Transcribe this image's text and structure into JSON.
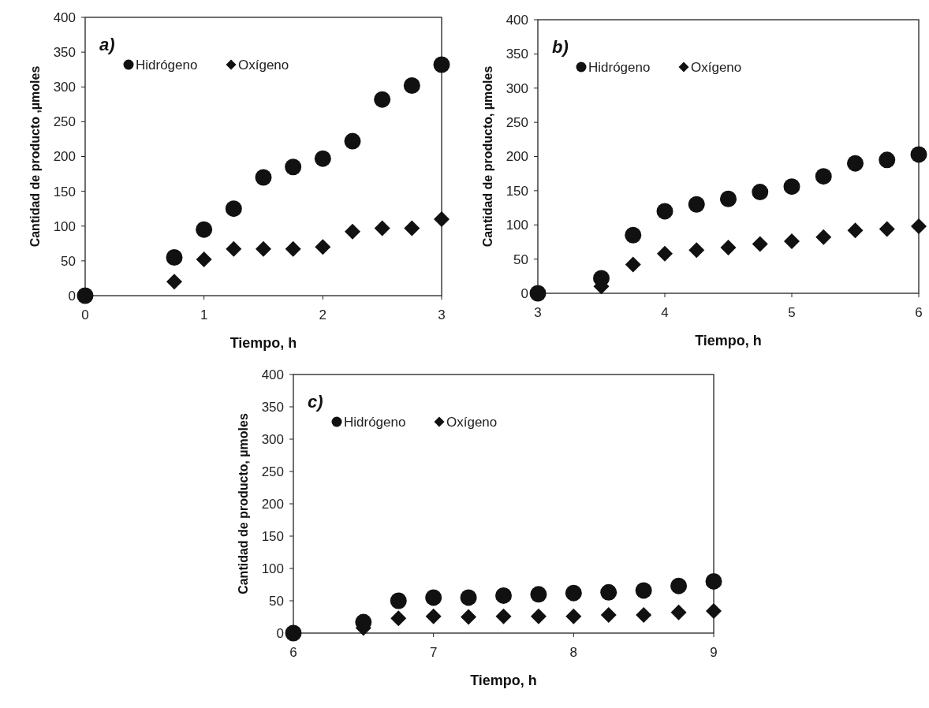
{
  "chart_data": [
    {
      "type": "scatter",
      "title": "a)",
      "xlabel": "Tiempo, h",
      "ylabel": "Cantidad de producto ,µmoles",
      "x": [
        0,
        0.75,
        1,
        1.25,
        1.5,
        1.75,
        2,
        2.25,
        2.5,
        2.75,
        3
      ],
      "xlim": [
        0,
        3
      ],
      "xticks": [
        0,
        1,
        2,
        3
      ],
      "ylim": [
        0,
        400
      ],
      "yticks": [
        0,
        50,
        100,
        150,
        200,
        250,
        300,
        350,
        400
      ],
      "grid": false,
      "legend": "top left",
      "series": [
        {
          "name": "Hidrógeno",
          "color": "#111111",
          "marker": "circle",
          "values": [
            0,
            55,
            95,
            125,
            170,
            185,
            197,
            222,
            282,
            302,
            332
          ]
        },
        {
          "name": "Oxígeno",
          "color": "#111111",
          "marker": "diamond",
          "values": [
            null,
            20,
            52,
            67,
            67,
            67,
            70,
            92,
            97,
            97,
            110
          ]
        }
      ]
    },
    {
      "type": "scatter",
      "title": "b)",
      "xlabel": "Tiempo, h",
      "ylabel": "Cantidad de producto, µmoles",
      "x": [
        3,
        3.5,
        3.75,
        4,
        4.25,
        4.5,
        4.75,
        5,
        5.25,
        5.5,
        5.75,
        6
      ],
      "xlim": [
        3,
        6
      ],
      "xticks": [
        3,
        4,
        5,
        6
      ],
      "ylim": [
        0,
        400
      ],
      "yticks": [
        0,
        50,
        100,
        150,
        200,
        250,
        300,
        350,
        400
      ],
      "grid": false,
      "legend": "top left",
      "series": [
        {
          "name": "Hidrógeno",
          "color": "#111111",
          "marker": "circle",
          "values": [
            0,
            22,
            85,
            120,
            130,
            138,
            148,
            156,
            171,
            190,
            195,
            203
          ]
        },
        {
          "name": "Oxígeno",
          "color": "#111111",
          "marker": "diamond",
          "values": [
            null,
            10,
            42,
            58,
            63,
            67,
            72,
            76,
            82,
            92,
            94,
            98
          ]
        }
      ]
    },
    {
      "type": "scatter",
      "title": "c)",
      "xlabel": "Tiempo, h",
      "ylabel": "Cantidad de producto, µmoles",
      "x": [
        6,
        6.5,
        6.75,
        7,
        7.25,
        7.5,
        7.75,
        8,
        8.25,
        8.5,
        8.75,
        9
      ],
      "xlim": [
        6,
        9
      ],
      "xticks": [
        6,
        7,
        8,
        9
      ],
      "ylim": [
        0,
        400
      ],
      "yticks": [
        0,
        50,
        100,
        150,
        200,
        250,
        300,
        350,
        400
      ],
      "grid": false,
      "legend": "top left",
      "series": [
        {
          "name": "Hidrógeno",
          "color": "#111111",
          "marker": "circle",
          "values": [
            0,
            17,
            50,
            55,
            55,
            58,
            60,
            62,
            63,
            66,
            73,
            80
          ]
        },
        {
          "name": "Oxígeno",
          "color": "#111111",
          "marker": "diamond",
          "values": [
            null,
            8,
            23,
            26,
            25,
            26,
            26,
            26,
            28,
            28,
            32,
            34
          ]
        }
      ]
    }
  ]
}
